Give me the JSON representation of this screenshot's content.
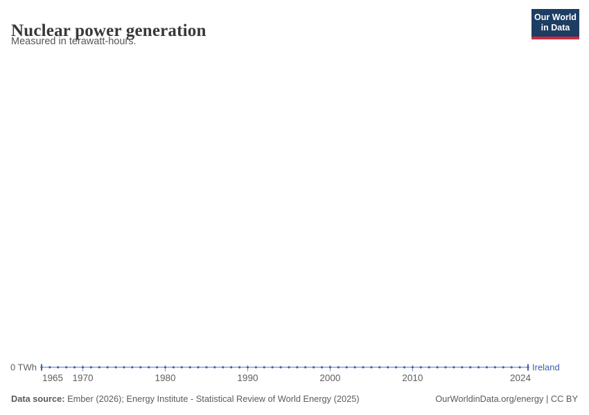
{
  "header": {
    "title": "Nuclear power generation",
    "subtitle": "Measured in terawatt-hours."
  },
  "logo": {
    "line1": "Our World",
    "line2": "in Data",
    "bg_color": "#1d3d63",
    "bar_color": "#d12a3d"
  },
  "chart_data": {
    "type": "line",
    "title": "Nuclear power generation",
    "subtitle": "Measured in terawatt-hours.",
    "xlim": [
      1965,
      2024
    ],
    "ylim": [
      0,
      0
    ],
    "grid": false,
    "legend_position": "right-of-line-end",
    "y_axis_label": "0 TWh",
    "x_ticks": [
      1965,
      1970,
      1980,
      1990,
      2000,
      2010,
      2024
    ],
    "x_tick_labels": [
      "1965",
      "1970",
      "1980",
      "1990",
      "2000",
      "2010",
      "2024"
    ],
    "style": {
      "line_color": "#a4bbe3",
      "tick_color": "#8297bf",
      "axis_label_color": "#5e5e5e"
    },
    "series": [
      {
        "name": "Ireland",
        "color": "#3d61ab",
        "x": [
          1965,
          1966,
          1967,
          1968,
          1969,
          1970,
          1971,
          1972,
          1973,
          1974,
          1975,
          1976,
          1977,
          1978,
          1979,
          1980,
          1981,
          1982,
          1983,
          1984,
          1985,
          1986,
          1987,
          1988,
          1989,
          1990,
          1991,
          1992,
          1993,
          1994,
          1995,
          1996,
          1997,
          1998,
          1999,
          2000,
          2001,
          2002,
          2003,
          2004,
          2005,
          2006,
          2007,
          2008,
          2009,
          2010,
          2011,
          2012,
          2013,
          2014,
          2015,
          2016,
          2017,
          2018,
          2019,
          2020,
          2021,
          2022,
          2023,
          2024
        ],
        "values": [
          0,
          0,
          0,
          0,
          0,
          0,
          0,
          0,
          0,
          0,
          0,
          0,
          0,
          0,
          0,
          0,
          0,
          0,
          0,
          0,
          0,
          0,
          0,
          0,
          0,
          0,
          0,
          0,
          0,
          0,
          0,
          0,
          0,
          0,
          0,
          0,
          0,
          0,
          0,
          0,
          0,
          0,
          0,
          0,
          0,
          0,
          0,
          0,
          0,
          0,
          0,
          0,
          0,
          0,
          0,
          0,
          0,
          0,
          0,
          0
        ]
      }
    ]
  },
  "footer": {
    "source_label": "Data source:",
    "source_text": " Ember (2026); Energy Institute - Statistical Review of World Energy (2025)",
    "credit": "OurWorldinData.org/energy | CC BY"
  }
}
